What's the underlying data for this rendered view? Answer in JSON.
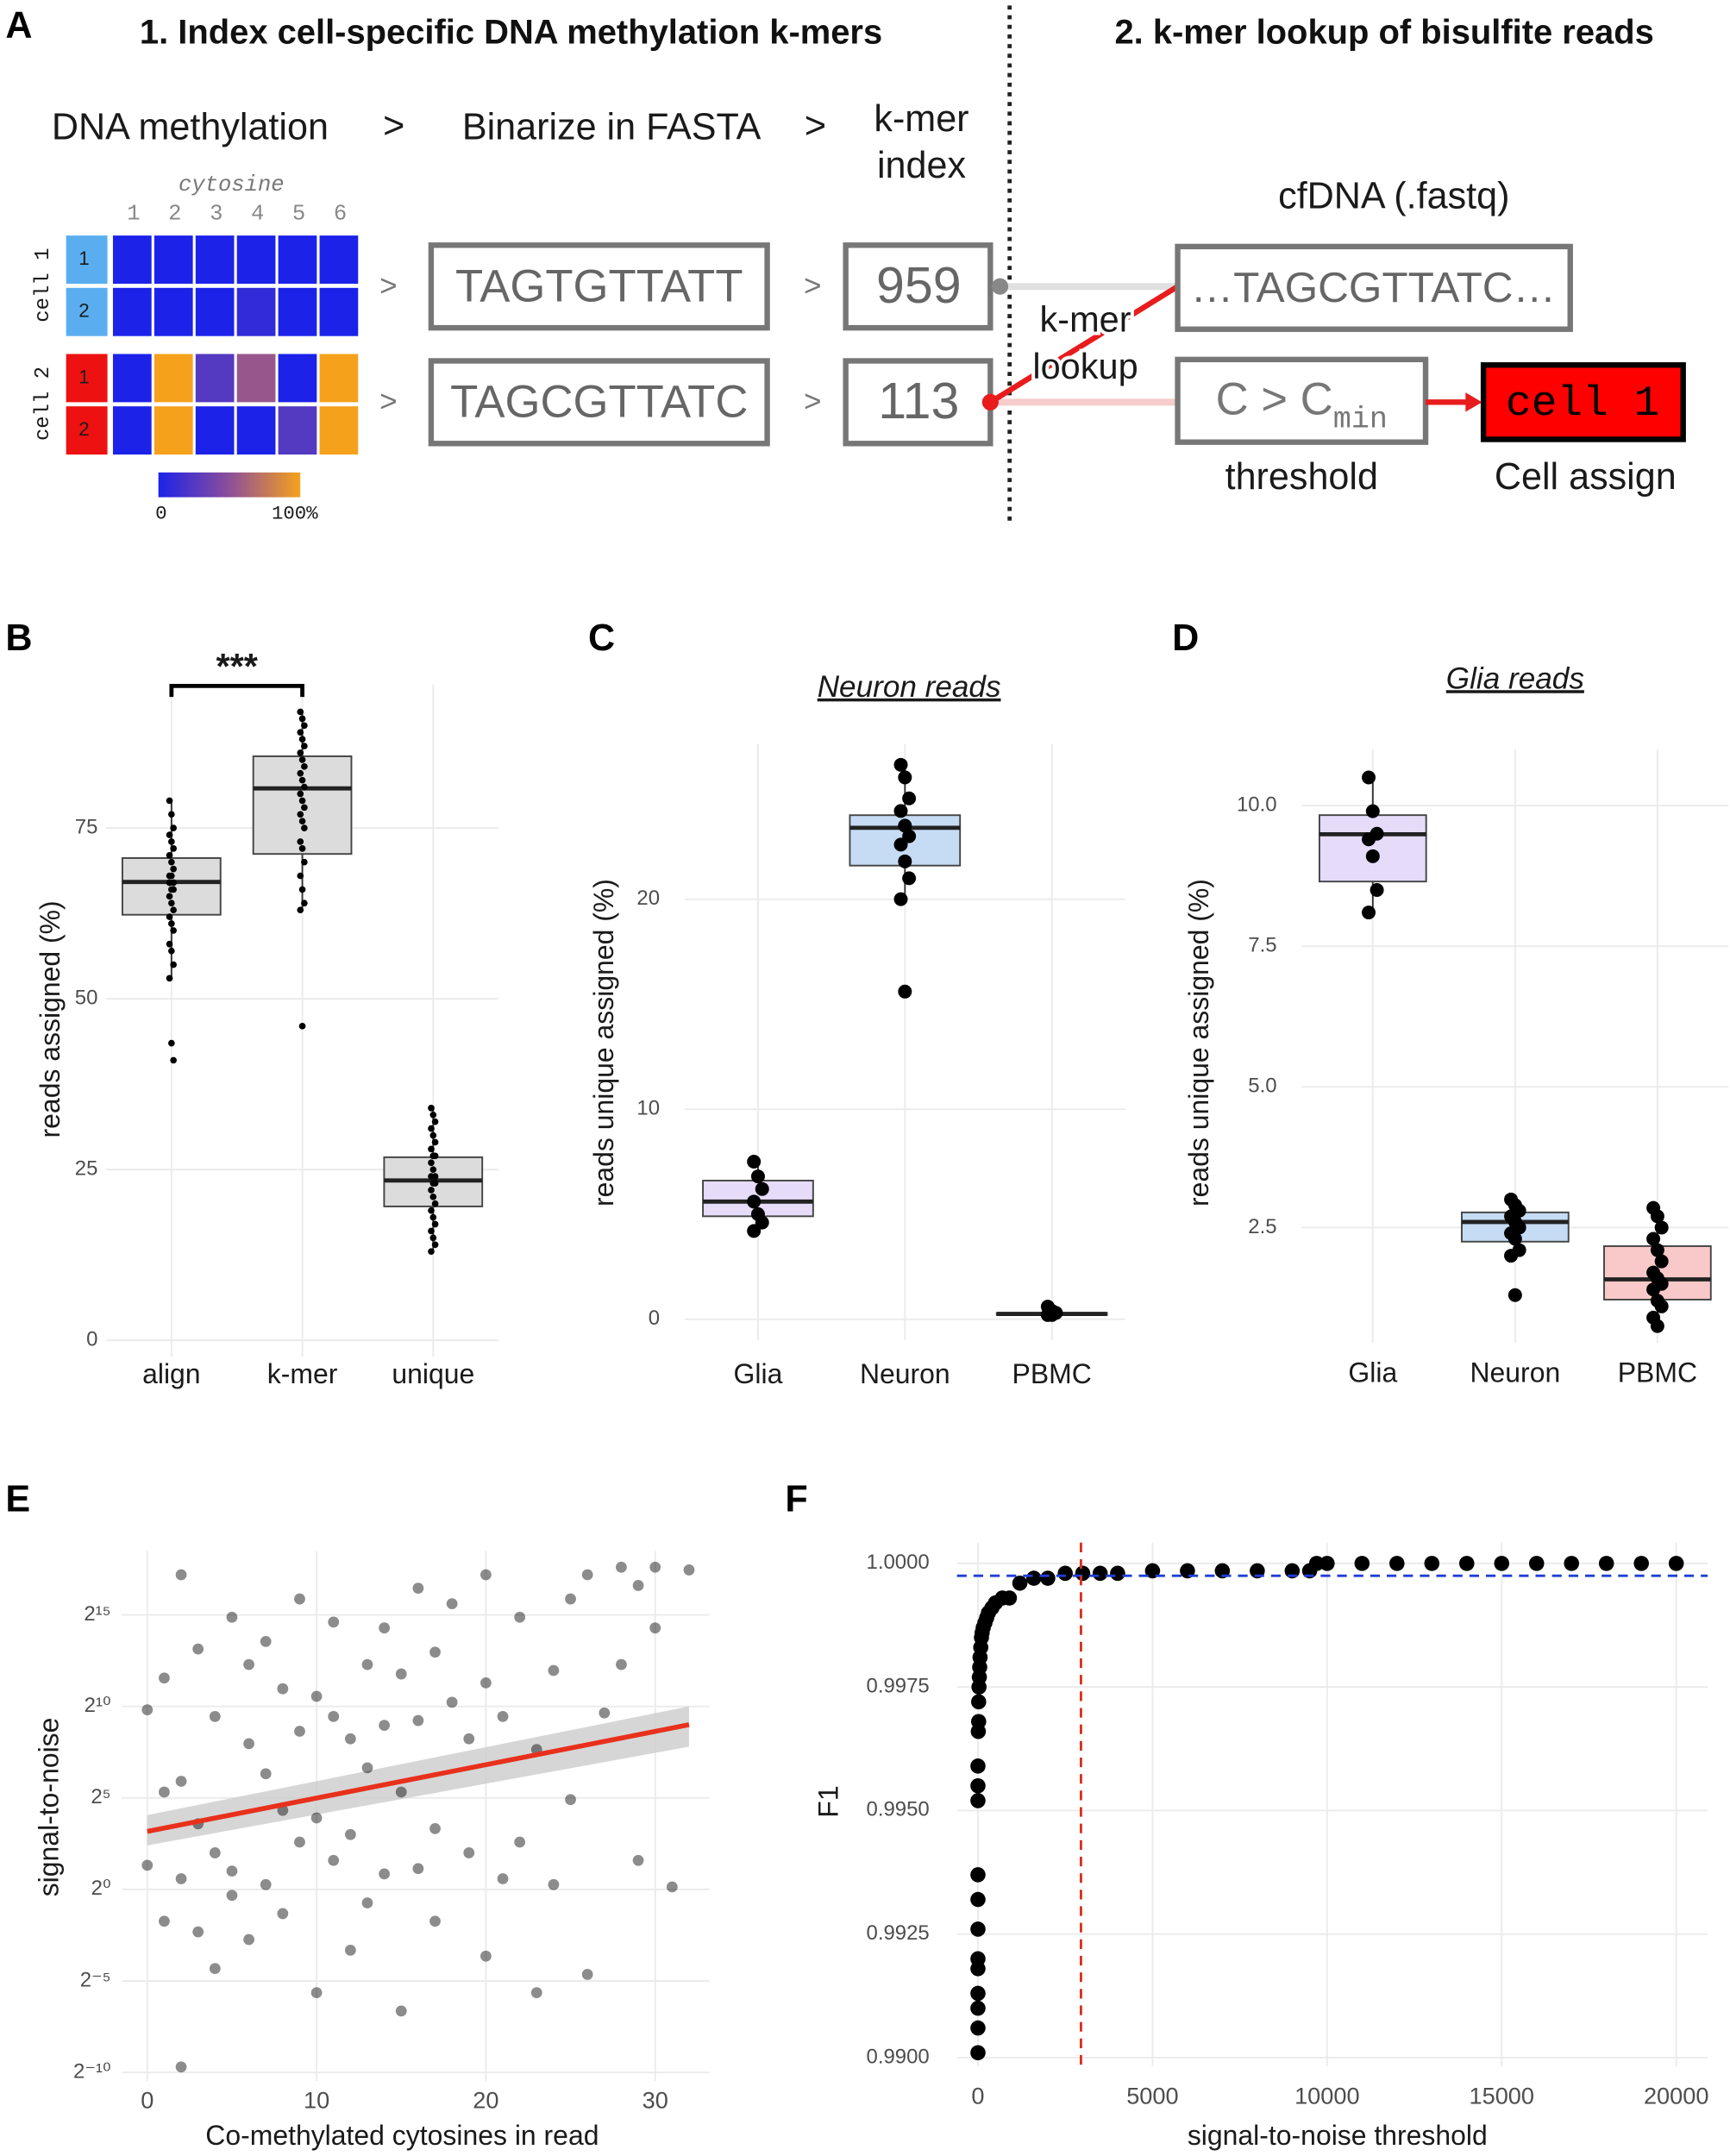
{
  "panel_a": {
    "label": "A",
    "title_1": "1. Index cell-specific DNA methylation k-mers",
    "title_2": "2. k-mer lookup of bisulfite reads",
    "step_1": "DNA methylation",
    "step_2": "Binarize in FASTA",
    "step_3": [
      "k-mer",
      "index"
    ],
    "separator": ">",
    "cytosine_label": "cytosine",
    "cytosine_positions": [
      "1",
      "2",
      "3",
      "4",
      "5",
      "6"
    ],
    "cells": [
      {
        "name": "cell 1",
        "rows": [
          "1",
          "2"
        ],
        "color": "#5aaef0",
        "methylation": [
          [
            0,
            0,
            0,
            0,
            0,
            0
          ],
          [
            0,
            0,
            0,
            10,
            0,
            0
          ]
        ]
      },
      {
        "name": "cell 2",
        "rows": [
          "1",
          "2"
        ],
        "color": "#ee1111",
        "methylation": [
          [
            0,
            100,
            25,
            55,
            0,
            100
          ],
          [
            0,
            100,
            0,
            0,
            25,
            100
          ]
        ]
      }
    ],
    "colorscale": [
      "#1c22e8",
      "#8c4f9a",
      "#f6a11c"
    ],
    "colorbar_labels": [
      "0",
      "100%"
    ],
    "sequences": [
      "TAGTGTTATT",
      "TAGCGTTATC"
    ],
    "kmer_ids": [
      959,
      113
    ],
    "lookup_label": [
      "k-mer",
      "lookup"
    ],
    "read_source": "cfDNA (.fastq)",
    "read": "…TAGCGTTATC…",
    "threshold_expr": "C > C",
    "threshold_sub": "min",
    "threshold_label": "threshold",
    "assigned": "cell 1",
    "assign_label": "Cell assign"
  },
  "chart_data": [
    {
      "type": "box",
      "panel_label": "B",
      "ylabel": "reads assigned (%)",
      "significance": "***",
      "categories": [
        "align",
        "k-mer",
        "unique"
      ],
      "boxes": [
        {
          "low": 53,
          "q1": 62.3,
          "median": 67.1,
          "q3": 70.6,
          "high": 79
        },
        {
          "low": 63,
          "q1": 71.2,
          "median": 80.8,
          "q3": 85.5,
          "high": 92
        },
        {
          "low": 13,
          "q1": 19.6,
          "median": 23.4,
          "q3": 26.8,
          "high": 34
        }
      ],
      "points": [
        [
          79,
          77,
          75,
          74,
          73,
          72,
          71,
          70,
          69,
          68,
          68,
          67,
          67,
          66,
          66,
          65,
          64,
          63,
          62,
          61,
          60,
          58,
          57,
          55,
          53,
          43.5,
          41
        ],
        [
          92,
          91,
          90,
          89,
          88,
          87,
          86,
          85,
          84,
          83,
          82,
          81,
          80,
          79,
          78,
          77,
          76,
          75,
          73,
          72,
          70,
          68,
          66,
          64,
          63,
          46
        ],
        [
          34,
          33,
          32,
          31,
          30,
          29,
          28,
          27,
          27,
          26,
          25,
          24,
          24,
          23,
          23,
          22,
          21,
          20,
          19,
          18,
          17,
          16,
          15,
          14,
          13
        ]
      ],
      "colors": [
        "#dcdcdc",
        "#dcdcdc",
        "#dcdcdc"
      ],
      "ylim": [
        -2.4,
        96
      ],
      "yticks": [
        0,
        25,
        50,
        75
      ],
      "grid": true
    },
    {
      "type": "box",
      "panel_label": "C",
      "title": "Neuron reads",
      "ylabel": "reads unique assigned (%)",
      "categories": [
        "Glia",
        "Neuron",
        "PBMC"
      ],
      "boxes": [
        {
          "low": 4.3,
          "q1": 4.9,
          "median": 5.6,
          "q3": 6.6,
          "high": 7.5
        },
        {
          "low": 20,
          "q1": 21.6,
          "median": 23.4,
          "q3": 24.0,
          "high": 26.4
        },
        {
          "low": 0.2,
          "q1": 0.2,
          "median": 0.25,
          "q3": 0.3,
          "high": 0.6
        }
      ],
      "points": [
        [
          7.5,
          6.8,
          6.2,
          5.6,
          5.0,
          4.6,
          4.2
        ],
        [
          26.4,
          25.8,
          24.8,
          24.2,
          23.5,
          23.0,
          22.6,
          21.8,
          21.0,
          20.0,
          15.6
        ],
        [
          0.6,
          0.4,
          0.3,
          0.2,
          0.2
        ]
      ],
      "colors": [
        "#e6dcfa",
        "#c6dcf5",
        "#f9c8c8"
      ],
      "ylim": [
        -1,
        27.4
      ],
      "yticks": [
        0,
        10,
        20
      ],
      "grid": true
    },
    {
      "type": "box",
      "panel_label": "D",
      "title": "Glia reads",
      "ylabel": "reads unique assigned (%)",
      "categories": [
        "Glia",
        "Neuron",
        "PBMC"
      ],
      "boxes": [
        {
          "low": 8.1,
          "q1": 8.65,
          "median": 9.49,
          "q3": 9.83,
          "high": 10.5
        },
        {
          "low": 1.95,
          "q1": 2.25,
          "median": 2.6,
          "q3": 2.77,
          "high": 3.0
        },
        {
          "low": 0.75,
          "q1": 1.22,
          "median": 1.58,
          "q3": 2.17,
          "high": 2.85
        }
      ],
      "points": [
        [
          10.5,
          9.9,
          9.5,
          9.4,
          9.1,
          8.5,
          8.1
        ],
        [
          3.0,
          2.9,
          2.8,
          2.7,
          2.6,
          2.5,
          2.4,
          2.3,
          2.1,
          2.0,
          1.3
        ],
        [
          2.85,
          2.7,
          2.5,
          2.3,
          2.1,
          1.9,
          1.7,
          1.6,
          1.5,
          1.4,
          1.2,
          1.1,
          0.9,
          0.75
        ]
      ],
      "colors": [
        "#e6dcfa",
        "#c6dcf5",
        "#f9c8c8"
      ],
      "ylim": [
        0.45,
        11
      ],
      "yticks": [
        2.5,
        {
          "value": 5,
          "label": "5.0"
        },
        7.5,
        {
          "value": 10,
          "label": "10.0"
        }
      ],
      "grid": true
    },
    {
      "type": "scatter",
      "panel_label": "E",
      "xlabel": "Co-methylated cytosines in read",
      "ylabel": "signal-to-noise",
      "x": [
        0,
        0,
        1,
        1,
        1,
        2,
        2,
        2,
        2,
        3,
        3,
        3,
        4,
        4,
        4,
        5,
        5,
        5,
        6,
        6,
        6,
        7,
        7,
        7,
        8,
        8,
        8,
        9,
        9,
        9,
        10,
        10,
        10,
        11,
        11,
        11,
        12,
        12,
        12,
        13,
        13,
        13,
        14,
        14,
        14,
        15,
        15,
        15,
        16,
        16,
        16,
        17,
        17,
        17,
        18,
        18,
        19,
        19,
        20,
        20,
        20,
        21,
        21,
        22,
        22,
        23,
        23,
        24,
        24,
        25,
        25,
        26,
        26,
        27,
        28,
        28,
        29,
        29,
        30,
        30,
        31,
        32
      ],
      "y": [
        900,
        2.5,
        0.3,
        40,
        3000,
        0.0012,
        150000,
        1.5,
        60,
        9000,
        0.2,
        12,
        700,
        0.05,
        4,
        30000,
        2,
        0.8,
        250,
        0.15,
        5000,
        12000,
        1.2,
        80,
        0.4,
        2000,
        20,
        400,
        6,
        60000,
        0.02,
        1500,
        15,
        3,
        700,
        25000,
        0.1,
        300,
        8,
        5000,
        0.6,
        100,
        1.8,
        20000,
        500,
        0.01,
        3500,
        40,
        90000,
        2.2,
        600,
        10,
        8000,
        0.3,
        1200,
        50000,
        4,
        300,
        150000,
        0.08,
        2500,
        700,
        1.5,
        30000,
        6,
        200,
        0.02,
        4000,
        1.2,
        60000,
        30,
        150000,
        0.04,
        800,
        200000,
        5000,
        3,
        100000,
        200000,
        20000,
        1.1,
        180000
      ],
      "color": "#000000",
      "opacity": 0.45,
      "trend": {
        "x": [
          0,
          32
        ],
        "y": [
          9,
          512
        ],
        "lower": [
          5.3,
          223
        ],
        "upper": [
          16.7,
          1024
        ],
        "color": "#e8301c",
        "band_color": "#cccccc"
      },
      "ylog_base": 2,
      "xlim": [
        -1.5,
        33.2
      ],
      "xticks": [
        0,
        10,
        20,
        30
      ],
      "ylim": [
        0.0007,
        370000
      ],
      "yticks": [
        {
          "value": 0.0009765625,
          "label": "2⁻¹⁰"
        },
        {
          "value": 0.03125,
          "label": "2⁻⁵"
        },
        {
          "value": 1,
          "label": "2⁰"
        },
        {
          "value": 32,
          "label": "2⁵"
        },
        {
          "value": 1024,
          "label": "2¹⁰"
        },
        {
          "value": 32768,
          "label": "2¹⁵"
        }
      ],
      "grid": true
    },
    {
      "type": "scatter",
      "panel_label": "F",
      "xlabel": "signal-to-noise threshold",
      "ylabel": "F1",
      "x": [
        0,
        0,
        0,
        0,
        0,
        0,
        0,
        0,
        0,
        0,
        0,
        0,
        10,
        20,
        20,
        30,
        40,
        50,
        60,
        80,
        100,
        120,
        150,
        200,
        250,
        300,
        400,
        500,
        700,
        900,
        1200,
        1600,
        2000,
        2500,
        3000,
        3500,
        4000,
        5000,
        6000,
        7000,
        8000,
        9000,
        9500,
        9700,
        10000,
        11000,
        12000,
        13000,
        14000,
        15000,
        16000,
        17000,
        18000,
        19000,
        20000
      ],
      "y": [
        0.9901,
        0.9906,
        0.991,
        0.9913,
        0.9918,
        0.992,
        0.9926,
        0.9932,
        0.9937,
        0.9952,
        0.9955,
        0.9959,
        0.9966,
        0.9968,
        0.9972,
        0.9975,
        0.9977,
        0.9979,
        0.9981,
        0.9983,
        0.9985,
        0.9986,
        0.9987,
        0.9988,
        0.9989,
        0.999,
        0.9991,
        0.9992,
        0.9993,
        0.9993,
        0.9996,
        0.9997,
        0.9997,
        0.9998,
        0.9998,
        0.9998,
        0.9998,
        0.99985,
        0.99985,
        0.99985,
        0.99985,
        0.99985,
        0.99985,
        1,
        1,
        1,
        1,
        1,
        1,
        1,
        1,
        1,
        1,
        1,
        1
      ],
      "color": "#000000",
      "opacity": 1,
      "hline": {
        "value": 0.99975,
        "color": "#1f3fd6"
      },
      "vline": {
        "value": 2950,
        "color": "#d9301c"
      },
      "xlim": [
        -600,
        20900
      ],
      "xticks": [
        0,
        5000,
        10000,
        15000,
        20000
      ],
      "ylim": [
        0.98983,
        1.00042
      ],
      "yticks": [
        {
          "value": 0.99,
          "label": "0.9900"
        },
        0.9925,
        {
          "value": 0.995,
          "label": "0.9950"
        },
        0.9975,
        {
          "value": 1,
          "label": "1.0000"
        }
      ],
      "grid": true
    }
  ]
}
